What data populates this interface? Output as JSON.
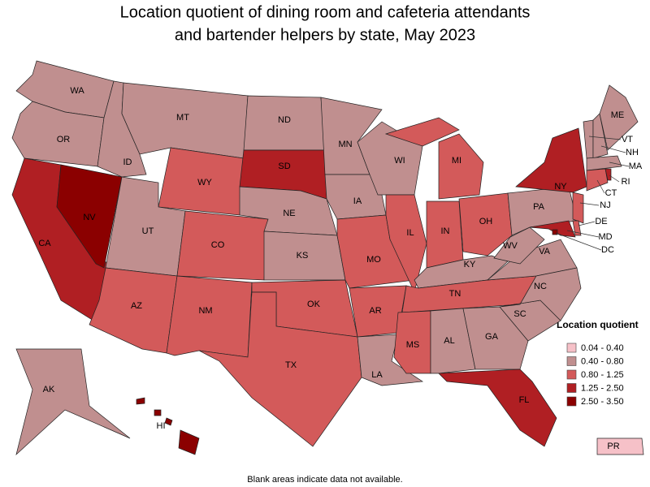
{
  "title_lines": [
    "Location quotient of dining room and cafeteria attendants",
    "and bartender helpers by state, May 2023"
  ],
  "legend": {
    "title": "Location quotient",
    "items": [
      {
        "label": "0.04 - 0.40",
        "color": "#f6c1c8"
      },
      {
        "label": "0.40 - 0.80",
        "color": "#c08f8f"
      },
      {
        "label": "0.80 - 1.25",
        "color": "#d35a5a"
      },
      {
        "label": "1.25 - 2.50",
        "color": "#b01f23"
      },
      {
        "label": "2.50 - 3.50",
        "color": "#8b0000"
      }
    ]
  },
  "states": [
    {
      "label": "WA",
      "class": 1
    },
    {
      "label": "OR",
      "class": 1
    },
    {
      "label": "CA",
      "class": 3
    },
    {
      "label": "NV",
      "class": 4
    },
    {
      "label": "ID",
      "class": 1
    },
    {
      "label": "MT",
      "class": 1
    },
    {
      "label": "WY",
      "class": 2
    },
    {
      "label": "UT",
      "class": 1
    },
    {
      "label": "CO",
      "class": 2
    },
    {
      "label": "AZ",
      "class": 2
    },
    {
      "label": "NM",
      "class": 2
    },
    {
      "label": "ND",
      "class": 1
    },
    {
      "label": "SD",
      "class": 3
    },
    {
      "label": "NE",
      "class": 1
    },
    {
      "label": "KS",
      "class": 1
    },
    {
      "label": "OK",
      "class": 2
    },
    {
      "label": "TX",
      "class": 2
    },
    {
      "label": "MN",
      "class": 1
    },
    {
      "label": "IA",
      "class": 1
    },
    {
      "label": "MO",
      "class": 2
    },
    {
      "label": "AR",
      "class": 2
    },
    {
      "label": "LA",
      "class": 1
    },
    {
      "label": "WI",
      "class": 1
    },
    {
      "label": "IL",
      "class": 2
    },
    {
      "label": "MI",
      "class": 2
    },
    {
      "label": "IN",
      "class": 2
    },
    {
      "label": "OH",
      "class": 2
    },
    {
      "label": "KY",
      "class": 1
    },
    {
      "label": "TN",
      "class": 2
    },
    {
      "label": "MS",
      "class": 2
    },
    {
      "label": "AL",
      "class": 1
    },
    {
      "label": "GA",
      "class": 1
    },
    {
      "label": "FL",
      "class": 3
    },
    {
      "label": "SC",
      "class": 1
    },
    {
      "label": "VA",
      "class": 1
    },
    {
      "label": "NC",
      "class": 1
    },
    {
      "label": "WV",
      "class": 1
    },
    {
      "label": "PA",
      "class": 1
    },
    {
      "label": "NY",
      "class": 3
    },
    {
      "label": "NJ",
      "class": 2
    },
    {
      "label": "DE",
      "class": 2
    },
    {
      "label": "MD",
      "class": 3
    },
    {
      "label": "DC",
      "class": 4
    },
    {
      "label": "VT",
      "class": 1
    },
    {
      "label": "NH",
      "class": 1
    },
    {
      "label": "ME",
      "class": 1
    },
    {
      "label": "MA",
      "class": 1
    },
    {
      "label": "CT",
      "class": 2
    },
    {
      "label": "RI",
      "class": 3
    },
    {
      "label": "AK",
      "class": 1
    },
    {
      "label": "HI",
      "class": 4
    },
    {
      "label": "PR",
      "class": 0
    }
  ],
  "footnote": "Blank areas indicate data not available."
}
